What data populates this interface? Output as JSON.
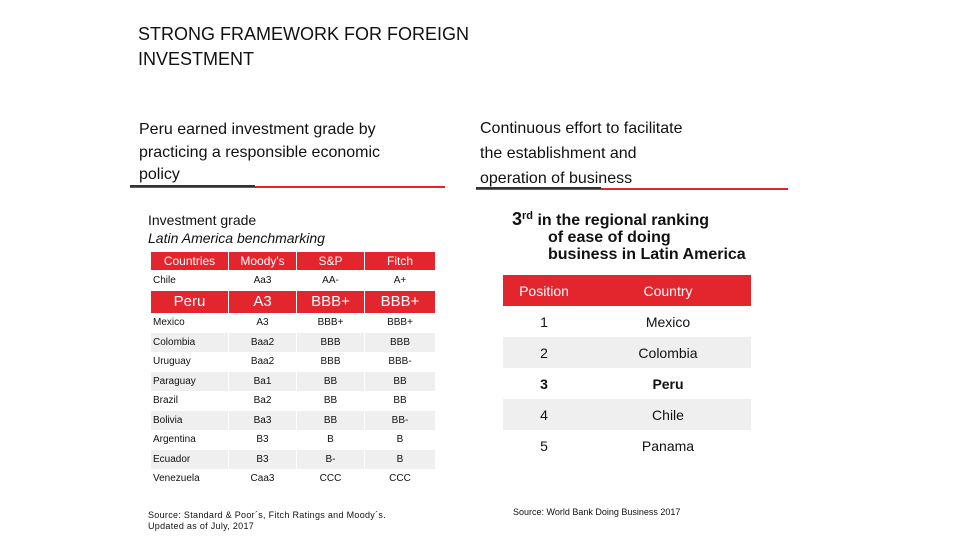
{
  "title_lines": [
    "STRONG FRAMEWORK FOR FOREIGN",
    "INVESTMENT"
  ],
  "left_heading_lines": [
    "Peru earned investment grade by",
    "practicing a responsible economic",
    "policy"
  ],
  "right_heading_lines": [
    "Continuous effort to facilitate",
    "the establishment and",
    "operation of business"
  ],
  "investment_grade": {
    "title": "Investment grade",
    "subtitle": "Latin America benchmarking",
    "headers": [
      "Countries",
      "Moody's",
      "S&P",
      "Fitch"
    ],
    "rows": [
      [
        "Chile",
        "Aa3",
        "AA-",
        "A+"
      ],
      [
        "Peru",
        "A3",
        "BBB+",
        "BBB+"
      ],
      [
        "Mexico",
        "A3",
        "BBB+",
        "BBB+"
      ],
      [
        "Colombia",
        "Baa2",
        "BBB",
        "BBB"
      ],
      [
        "Uruguay",
        "Baa2",
        "BBB",
        "BBB-"
      ],
      [
        "Paraguay",
        "Ba1",
        "BB",
        "BB"
      ],
      [
        "Brazil",
        "Ba2",
        "BB",
        "BB"
      ],
      [
        "Bolivia",
        "Ba3",
        "BB",
        "BB-"
      ],
      [
        "Argentina",
        "B3",
        "B",
        "B"
      ],
      [
        "Ecuador",
        "B3",
        "B-",
        "B"
      ],
      [
        "Venezuela",
        "Caa3",
        "CCC",
        "CCC"
      ]
    ],
    "highlight_row": "Peru",
    "source_lines": [
      "Source:  Standard & Poor´s, Fitch Ratings and Moody´s.",
      "Updated as of July, 2017"
    ]
  },
  "doing_business": {
    "rank_number": "3",
    "rank_suffix": "rd",
    "heading_line1": "in the regional   ranking",
    "heading_line2": "of  ease of doing",
    "heading_line3": "business in Latin America",
    "headers": [
      "Position",
      "Country"
    ],
    "rows": [
      [
        "1",
        "Mexico"
      ],
      [
        "2",
        "Colombia"
      ],
      [
        "3",
        "Peru"
      ],
      [
        "4",
        "Chile"
      ],
      [
        "5",
        "Panama"
      ]
    ],
    "highlight_row": "Peru",
    "source": "Source: World Bank Doing Business 2017"
  },
  "colors": {
    "accent_red": "#e3262e",
    "row_gray": "#efefef"
  }
}
